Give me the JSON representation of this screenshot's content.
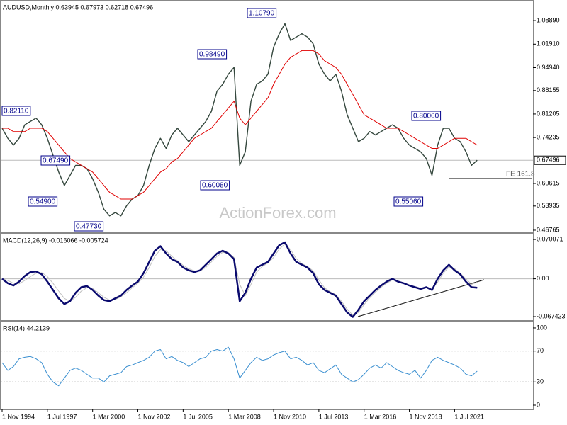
{
  "chart_data": [
    {
      "type": "line",
      "title": "AUDUSD,Monthly  0.63945 0.67973 0.62718 0.67496",
      "watermark": "ActionForex.com",
      "ylim": [
        0.4613,
        1.1457
      ],
      "yticks": [
        {
          "value": 1.0889,
          "label": "1.08890"
        },
        {
          "value": 1.0191,
          "label": "1.01910"
        },
        {
          "value": 0.9494,
          "label": "0.94940"
        },
        {
          "value": 0.88155,
          "label": "0.88155"
        },
        {
          "value": 0.81205,
          "label": "0.81205"
        },
        {
          "value": 0.74235,
          "label": "0.74235"
        },
        {
          "value": 0.60615,
          "label": "0.60615"
        },
        {
          "value": 0.53935,
          "label": "0.53935"
        },
        {
          "value": 0.46765,
          "label": "0.46765"
        }
      ],
      "last": {
        "value": 0.67496,
        "label": "0.67496"
      },
      "annotations": [
        "0.82110",
        "0.67490",
        "0.54900",
        "0.47730",
        "0.98490",
        "0.60080",
        "1.10790",
        "0.55060",
        "0.80060"
      ],
      "fe_label": "FE 161.8",
      "series": [
        {
          "color": "#34473d",
          "width": 1.4,
          "values": [
            0.77,
            0.74,
            0.72,
            0.74,
            0.78,
            0.79,
            0.8,
            0.78,
            0.74,
            0.69,
            0.64,
            0.6,
            0.63,
            0.66,
            0.66,
            0.65,
            0.62,
            0.58,
            0.53,
            0.51,
            0.52,
            0.51,
            0.54,
            0.56,
            0.57,
            0.6,
            0.66,
            0.71,
            0.74,
            0.71,
            0.75,
            0.77,
            0.75,
            0.73,
            0.75,
            0.77,
            0.79,
            0.82,
            0.88,
            0.9,
            0.93,
            0.95,
            0.66,
            0.7,
            0.85,
            0.9,
            0.91,
            0.93,
            1.01,
            1.05,
            1.08,
            1.03,
            1.04,
            1.05,
            1.04,
            1.02,
            0.96,
            0.93,
            0.91,
            0.93,
            0.88,
            0.81,
            0.77,
            0.73,
            0.74,
            0.76,
            0.75,
            0.76,
            0.77,
            0.78,
            0.77,
            0.74,
            0.72,
            0.71,
            0.7,
            0.68,
            0.63,
            0.72,
            0.77,
            0.77,
            0.74,
            0.73,
            0.7,
            0.66,
            0.675
          ]
        },
        {
          "color": "#e00000",
          "width": 1,
          "values": [
            0.77,
            0.77,
            0.76,
            0.76,
            0.76,
            0.77,
            0.77,
            0.77,
            0.76,
            0.74,
            0.72,
            0.7,
            0.68,
            0.67,
            0.66,
            0.65,
            0.64,
            0.62,
            0.6,
            0.58,
            0.57,
            0.56,
            0.56,
            0.56,
            0.57,
            0.58,
            0.6,
            0.62,
            0.64,
            0.65,
            0.67,
            0.68,
            0.7,
            0.72,
            0.74,
            0.75,
            0.76,
            0.77,
            0.79,
            0.81,
            0.83,
            0.85,
            0.8,
            0.78,
            0.8,
            0.82,
            0.84,
            0.86,
            0.9,
            0.93,
            0.96,
            0.98,
            0.99,
            1.0,
            1.0,
            1.0,
            0.99,
            0.97,
            0.96,
            0.95,
            0.93,
            0.9,
            0.87,
            0.84,
            0.81,
            0.8,
            0.79,
            0.78,
            0.77,
            0.77,
            0.77,
            0.76,
            0.75,
            0.74,
            0.73,
            0.72,
            0.71,
            0.71,
            0.72,
            0.73,
            0.74,
            0.74,
            0.74,
            0.73,
            0.72
          ]
        }
      ]
    },
    {
      "type": "line",
      "title": "MACD(12,26,9) -0.016066 -0.005724",
      "zero_line": true,
      "ylim": [
        -0.0737,
        0.079
      ],
      "yticks": [
        0.070071,
        {
          "value": 0,
          "label": "0.00"
        },
        -0.067423
      ],
      "series": [
        {
          "color": "#c0c0c0",
          "width": 1,
          "values": [
            0.0,
            -0.003,
            -0.008,
            -0.009,
            -0.003,
            0.004,
            0.01,
            0.011,
            0.004,
            -0.008,
            -0.022,
            -0.035,
            -0.04,
            -0.033,
            -0.022,
            -0.016,
            -0.017,
            -0.025,
            -0.033,
            -0.038,
            -0.037,
            -0.032,
            -0.025,
            -0.016,
            -0.008,
            0.003,
            0.02,
            0.04,
            0.052,
            0.05,
            0.04,
            0.032,
            0.024,
            0.018,
            0.014,
            0.014,
            0.02,
            0.03,
            0.04,
            0.047,
            0.046,
            0.038,
            -0.01,
            -0.03,
            -0.01,
            0.012,
            0.022,
            0.028,
            0.038,
            0.053,
            0.062,
            0.052,
            0.036,
            0.027,
            0.022,
            0.014,
            -0.002,
            -0.016,
            -0.023,
            -0.028,
            -0.04,
            -0.054,
            -0.065,
            -0.06,
            -0.046,
            -0.034,
            -0.024,
            -0.015,
            -0.008,
            -0.002,
            -0.004,
            -0.007,
            -0.011,
            -0.014,
            -0.017,
            -0.016,
            -0.019,
            -0.006,
            0.01,
            0.021,
            0.018,
            0.01,
            0.0,
            -0.01,
            -0.006
          ]
        },
        {
          "color": "#0a0a6e",
          "width": 2.5,
          "values": [
            0.0,
            -0.008,
            -0.012,
            -0.005,
            0.005,
            0.012,
            0.013,
            0.008,
            -0.005,
            -0.02,
            -0.035,
            -0.045,
            -0.04,
            -0.025,
            -0.015,
            -0.013,
            -0.02,
            -0.03,
            -0.038,
            -0.04,
            -0.035,
            -0.03,
            -0.02,
            -0.012,
            -0.005,
            0.01,
            0.03,
            0.05,
            0.058,
            0.045,
            0.035,
            0.03,
            0.02,
            0.015,
            0.012,
            0.015,
            0.025,
            0.035,
            0.045,
            0.05,
            0.045,
            0.035,
            -0.04,
            -0.025,
            0.0,
            0.02,
            0.025,
            0.03,
            0.045,
            0.06,
            0.065,
            0.045,
            0.03,
            0.025,
            0.02,
            0.01,
            -0.01,
            -0.02,
            -0.025,
            -0.03,
            -0.045,
            -0.06,
            -0.068,
            -0.055,
            -0.04,
            -0.03,
            -0.02,
            -0.012,
            -0.005,
            0.0,
            -0.005,
            -0.008,
            -0.012,
            -0.015,
            -0.018,
            -0.015,
            -0.02,
            0.0,
            0.015,
            0.025,
            0.015,
            0.008,
            -0.005,
            -0.015,
            -0.016
          ]
        }
      ]
    },
    {
      "type": "line",
      "title": "RSI(14) 44.2139",
      "ylim": [
        -5.5,
        107.3
      ],
      "yticks": [
        100,
        70,
        30,
        0
      ],
      "levels": [
        70,
        30
      ],
      "categories": [
        "1 Nov 1994",
        null,
        null,
        null,
        null,
        null,
        null,
        null,
        "1 Jul 1997",
        null,
        null,
        null,
        null,
        null,
        null,
        null,
        "1 Mar 2000",
        null,
        null,
        null,
        null,
        null,
        null,
        null,
        "1 Nov 2002",
        null,
        null,
        null,
        null,
        null,
        null,
        null,
        "1 Jul 2005",
        null,
        null,
        null,
        null,
        null,
        null,
        null,
        "1 Mar 2008",
        null,
        null,
        null,
        null,
        null,
        null,
        null,
        "1 Nov 2010",
        null,
        null,
        null,
        null,
        null,
        null,
        null,
        "1 Jul 2013",
        null,
        null,
        null,
        null,
        null,
        null,
        null,
        "1 Mar 2016",
        null,
        null,
        null,
        null,
        null,
        null,
        null,
        "1 Nov 2018",
        null,
        null,
        null,
        null,
        null,
        null,
        null,
        "1 Jul 2021",
        null,
        null,
        null,
        null
      ],
      "series": [
        {
          "color": "#3a8fd0",
          "width": 1,
          "values": [
            55,
            45,
            50,
            60,
            62,
            63,
            60,
            55,
            40,
            30,
            25,
            35,
            45,
            48,
            45,
            40,
            35,
            35,
            30,
            38,
            40,
            42,
            50,
            52,
            55,
            58,
            62,
            70,
            72,
            60,
            63,
            58,
            55,
            50,
            55,
            60,
            62,
            70,
            72,
            70,
            75,
            60,
            35,
            45,
            55,
            62,
            58,
            60,
            65,
            68,
            70,
            60,
            62,
            58,
            52,
            55,
            45,
            42,
            47,
            52,
            40,
            35,
            30,
            33,
            40,
            48,
            52,
            48,
            55,
            50,
            45,
            42,
            40,
            45,
            35,
            45,
            58,
            62,
            58,
            55,
            52,
            48,
            40,
            38,
            44
          ]
        }
      ]
    }
  ]
}
